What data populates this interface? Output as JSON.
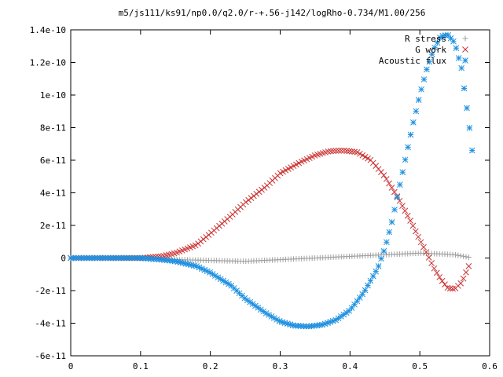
{
  "chart_data": {
    "type": "scatter",
    "title": "m5/js111/ks91/np0.0/q2.0/r-+.56-j142/logRho-0.734/M1.00/256",
    "xlabel": "",
    "ylabel": "",
    "xlim": [
      0,
      0.6
    ],
    "ylim": [
      -6e-11,
      1.4e-10
    ],
    "grid": false,
    "legend_position": "top-right",
    "x_ticks": [
      {
        "v": 0,
        "label": "0"
      },
      {
        "v": 0.1,
        "label": "0.1"
      },
      {
        "v": 0.2,
        "label": "0.2"
      },
      {
        "v": 0.3,
        "label": "0.3"
      },
      {
        "v": 0.4,
        "label": "0.4"
      },
      {
        "v": 0.5,
        "label": "0.5"
      },
      {
        "v": 0.6,
        "label": "0.6"
      }
    ],
    "y_ticks": [
      {
        "v": -6e-11,
        "label": "-6e-11"
      },
      {
        "v": -4e-11,
        "label": "-4e-11"
      },
      {
        "v": -2e-11,
        "label": "-2e-11"
      },
      {
        "v": 0,
        "label": "0"
      },
      {
        "v": 2e-11,
        "label": "2e-11"
      },
      {
        "v": 4e-11,
        "label": "4e-11"
      },
      {
        "v": 6e-11,
        "label": "6e-11"
      },
      {
        "v": 8e-11,
        "label": "8e-11"
      },
      {
        "v": 1e-10,
        "label": "1e-10"
      },
      {
        "v": 1.2e-10,
        "label": "1.2e-10"
      },
      {
        "v": 1.4e-10,
        "label": "1.4e-10"
      }
    ],
    "series": [
      {
        "name": "R stress",
        "color": "#a0a0a0",
        "marker": "plus",
        "points": [
          [
            0,
            0
          ],
          [
            0.1,
            0
          ],
          [
            0.15,
            -1e-12
          ],
          [
            0.2,
            -1.5e-12
          ],
          [
            0.25,
            -2e-12
          ],
          [
            0.3,
            -1e-12
          ],
          [
            0.35,
            0
          ],
          [
            0.4,
            1e-12
          ],
          [
            0.45,
            2e-12
          ],
          [
            0.5,
            3e-12
          ],
          [
            0.53,
            2.5e-12
          ],
          [
            0.55,
            2e-12
          ],
          [
            0.57,
            5e-13
          ]
        ]
      },
      {
        "name": "G work",
        "color": "#cc3333",
        "marker": "cross",
        "points": [
          [
            0,
            0
          ],
          [
            0.1,
            0
          ],
          [
            0.13,
            1e-12
          ],
          [
            0.15,
            3e-12
          ],
          [
            0.18,
            8e-12
          ],
          [
            0.2,
            1.5e-11
          ],
          [
            0.23,
            2.6e-11
          ],
          [
            0.25,
            3.4e-11
          ],
          [
            0.28,
            4.4e-11
          ],
          [
            0.3,
            5.2e-11
          ],
          [
            0.33,
            5.9e-11
          ],
          [
            0.35,
            6.3e-11
          ],
          [
            0.37,
            6.55e-11
          ],
          [
            0.39,
            6.6e-11
          ],
          [
            0.41,
            6.5e-11
          ],
          [
            0.43,
            6e-11
          ],
          [
            0.45,
            5e-11
          ],
          [
            0.47,
            3.6e-11
          ],
          [
            0.49,
            2e-11
          ],
          [
            0.5,
            1.1e-11
          ],
          [
            0.51,
            3e-12
          ],
          [
            0.52,
            -6e-12
          ],
          [
            0.53,
            -1.3e-11
          ],
          [
            0.54,
            -1.85e-11
          ],
          [
            0.55,
            -1.9e-11
          ],
          [
            0.56,
            -1.5e-11
          ],
          [
            0.565,
            -1e-11
          ],
          [
            0.57,
            -5e-12
          ]
        ]
      },
      {
        "name": "Acoustic flux",
        "color": "#1e90e0",
        "marker": "star",
        "points": [
          [
            0,
            0
          ],
          [
            0.1,
            0
          ],
          [
            0.13,
            -1e-12
          ],
          [
            0.15,
            -2e-12
          ],
          [
            0.18,
            -5e-12
          ],
          [
            0.2,
            -9e-12
          ],
          [
            0.23,
            -1.7e-11
          ],
          [
            0.25,
            -2.5e-11
          ],
          [
            0.28,
            -3.4e-11
          ],
          [
            0.3,
            -3.9e-11
          ],
          [
            0.32,
            -4.15e-11
          ],
          [
            0.34,
            -4.2e-11
          ],
          [
            0.36,
            -4.1e-11
          ],
          [
            0.38,
            -3.8e-11
          ],
          [
            0.4,
            -3.2e-11
          ],
          [
            0.42,
            -2.1e-11
          ],
          [
            0.44,
            -6e-12
          ],
          [
            0.45,
            6e-12
          ],
          [
            0.46,
            2.2e-11
          ],
          [
            0.47,
            4.2e-11
          ],
          [
            0.48,
            6.2e-11
          ],
          [
            0.49,
            8.2e-11
          ],
          [
            0.5,
            1e-10
          ],
          [
            0.51,
            1.16e-10
          ],
          [
            0.52,
            1.28e-10
          ],
          [
            0.53,
            1.36e-10
          ],
          [
            0.54,
            1.37e-10
          ],
          [
            0.55,
            1.32e-10
          ],
          [
            0.56,
            1.16e-10
          ],
          [
            0.565,
            9.9e-11
          ],
          [
            0.57,
            8.4e-11
          ],
          [
            0.575,
            6.6e-11
          ]
        ]
      }
    ]
  }
}
